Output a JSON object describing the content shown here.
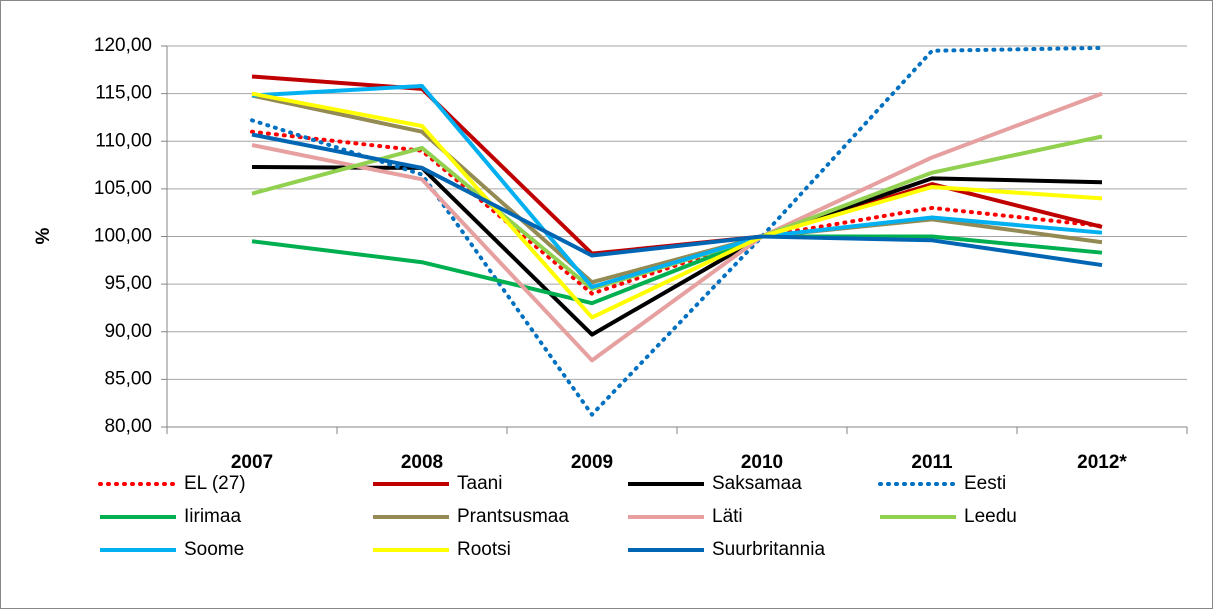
{
  "chart_data": {
    "type": "line",
    "ylabel": "%",
    "categories": [
      "2007",
      "2008",
      "2009",
      "2010",
      "2011",
      "2012*"
    ],
    "ylim": [
      80,
      120
    ],
    "yticks": [
      {
        "value": 80,
        "label": "80,00"
      },
      {
        "value": 85,
        "label": "85,00"
      },
      {
        "value": 90,
        "label": "90,00"
      },
      {
        "value": 95,
        "label": "95,00"
      },
      {
        "value": 100,
        "label": "100,00"
      },
      {
        "value": 105,
        "label": "105,00"
      },
      {
        "value": 110,
        "label": "110,00"
      },
      {
        "value": 115,
        "label": "115,00"
      },
      {
        "value": 120,
        "label": "120,00"
      }
    ],
    "grid": true,
    "legend": "bottom",
    "series": [
      {
        "name": "EL (27)",
        "color": "#ff0000",
        "style": "dotted",
        "values": [
          111,
          109,
          94,
          100,
          103,
          101.1
        ]
      },
      {
        "name": "Taani",
        "color": "#c00000",
        "style": "solid",
        "values": [
          116.8,
          115.5,
          98.2,
          100,
          105.5,
          101
        ]
      },
      {
        "name": "Saksamaa",
        "color": "#000000",
        "style": "solid",
        "values": [
          107.3,
          107.2,
          89.7,
          100,
          106.1,
          105.7
        ]
      },
      {
        "name": "Eesti",
        "color": "#0070c0",
        "style": "dotted",
        "values": [
          112.2,
          106.5,
          81.3,
          100,
          119.5,
          119.8
        ]
      },
      {
        "name": "Iirimaa",
        "color": "#00b050",
        "style": "solid",
        "values": [
          99.5,
          97.3,
          93,
          100,
          100,
          98.3
        ]
      },
      {
        "name": "Prantsusmaa",
        "color": "#948a54",
        "style": "solid",
        "values": [
          114.8,
          111,
          95.2,
          100,
          101.8,
          99.4
        ]
      },
      {
        "name": "Läti",
        "color": "#e6a0a0",
        "style": "solid",
        "values": [
          109.6,
          106,
          87,
          100,
          108.3,
          115
        ]
      },
      {
        "name": "Leedu",
        "color": "#92d050",
        "style": "solid",
        "values": [
          104.5,
          109.3,
          94.5,
          100,
          106.7,
          110.5
        ]
      },
      {
        "name": "Soome",
        "color": "#00b0f0",
        "style": "solid",
        "values": [
          114.8,
          115.8,
          94.7,
          100,
          102,
          100.4
        ]
      },
      {
        "name": "Rootsi",
        "color": "#ffff00",
        "style": "solid",
        "values": [
          115,
          111.6,
          91.5,
          100,
          105.2,
          104
        ]
      },
      {
        "name": "Suurbritannia",
        "color": "#0066b3",
        "style": "solid",
        "values": [
          110.7,
          107.2,
          98,
          100,
          99.6,
          97
        ]
      }
    ]
  }
}
